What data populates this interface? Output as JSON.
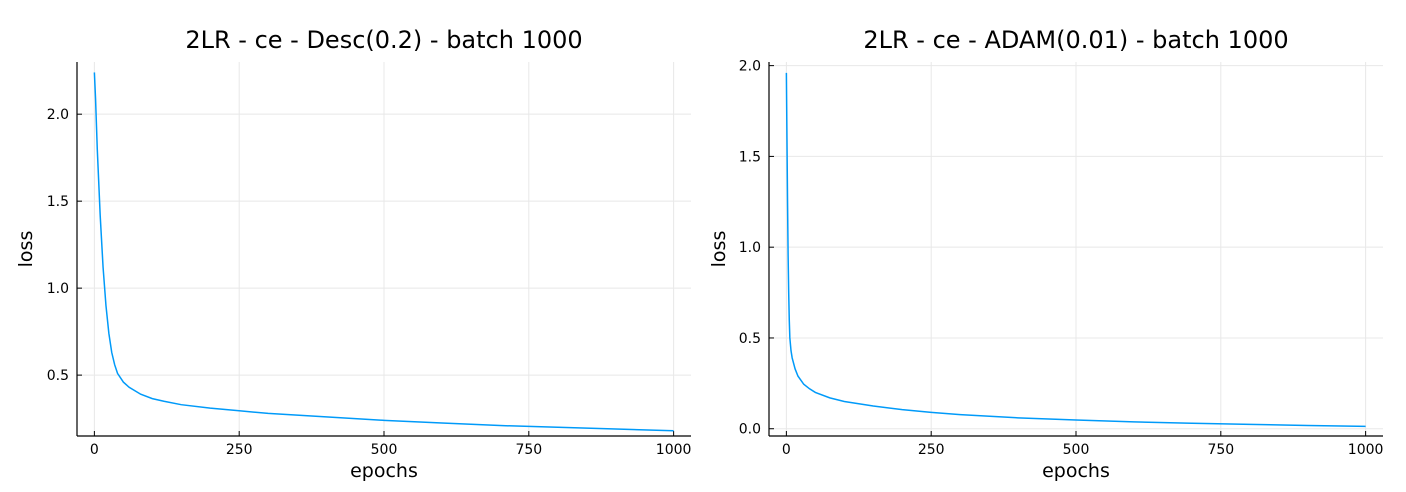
{
  "chart_data": [
    {
      "type": "line",
      "title": "2LR - ce - Desc(0.2) - batch 1000",
      "xlabel": "epochs",
      "ylabel": "loss",
      "xlim": [
        -30,
        1030
      ],
      "ylim": [
        0.15,
        2.3
      ],
      "x_ticks": [
        0,
        250,
        500,
        750,
        1000
      ],
      "x_tick_labels": [
        "0",
        "250",
        "500",
        "750",
        "1000"
      ],
      "y_ticks": [
        0.5,
        1.0,
        1.5,
        2.0
      ],
      "y_tick_labels": [
        "0.5",
        "1.0",
        "1.5",
        "2.0"
      ],
      "grid": true,
      "legend": "none",
      "color": "#009af9",
      "series": [
        {
          "x": [
            0,
            2,
            5,
            10,
            15,
            20,
            25,
            30,
            35,
            40,
            50,
            60,
            70,
            80,
            100,
            120,
            150,
            200,
            250,
            300,
            400,
            500,
            600,
            700,
            800,
            900,
            1000
          ],
          "values": [
            2.24,
            2.09,
            1.8,
            1.42,
            1.12,
            0.9,
            0.74,
            0.63,
            0.56,
            0.51,
            0.46,
            0.43,
            0.41,
            0.39,
            0.365,
            0.35,
            0.33,
            0.31,
            0.295,
            0.28,
            0.26,
            0.24,
            0.225,
            0.21,
            0.2,
            0.19,
            0.18
          ]
        }
      ]
    },
    {
      "type": "line",
      "title": "2LR - ce - ADAM(0.01) - batch 1000",
      "xlabel": "epochs",
      "ylabel": "loss",
      "xlim": [
        -30,
        1030
      ],
      "ylim": [
        -0.04,
        2.02
      ],
      "x_ticks": [
        0,
        250,
        500,
        750,
        1000
      ],
      "x_tick_labels": [
        "0",
        "250",
        "500",
        "750",
        "1000"
      ],
      "y_ticks": [
        0.0,
        0.5,
        1.0,
        1.5,
        2.0
      ],
      "y_tick_labels": [
        "0.0",
        "0.5",
        "1.0",
        "1.5",
        "2.0"
      ],
      "grid": true,
      "legend": "none",
      "color": "#009af9",
      "series": [
        {
          "x": [
            0,
            1,
            2,
            3,
            4,
            5,
            6,
            8,
            10,
            15,
            20,
            30,
            40,
            50,
            75,
            100,
            150,
            200,
            250,
            300,
            400,
            500,
            600,
            700,
            800,
            900,
            1000
          ],
          "values": [
            1.96,
            1.6,
            1.25,
            0.95,
            0.75,
            0.6,
            0.5,
            0.43,
            0.39,
            0.33,
            0.29,
            0.245,
            0.22,
            0.2,
            0.17,
            0.15,
            0.125,
            0.105,
            0.09,
            0.078,
            0.06,
            0.048,
            0.038,
            0.03,
            0.024,
            0.018,
            0.013
          ]
        }
      ]
    }
  ]
}
